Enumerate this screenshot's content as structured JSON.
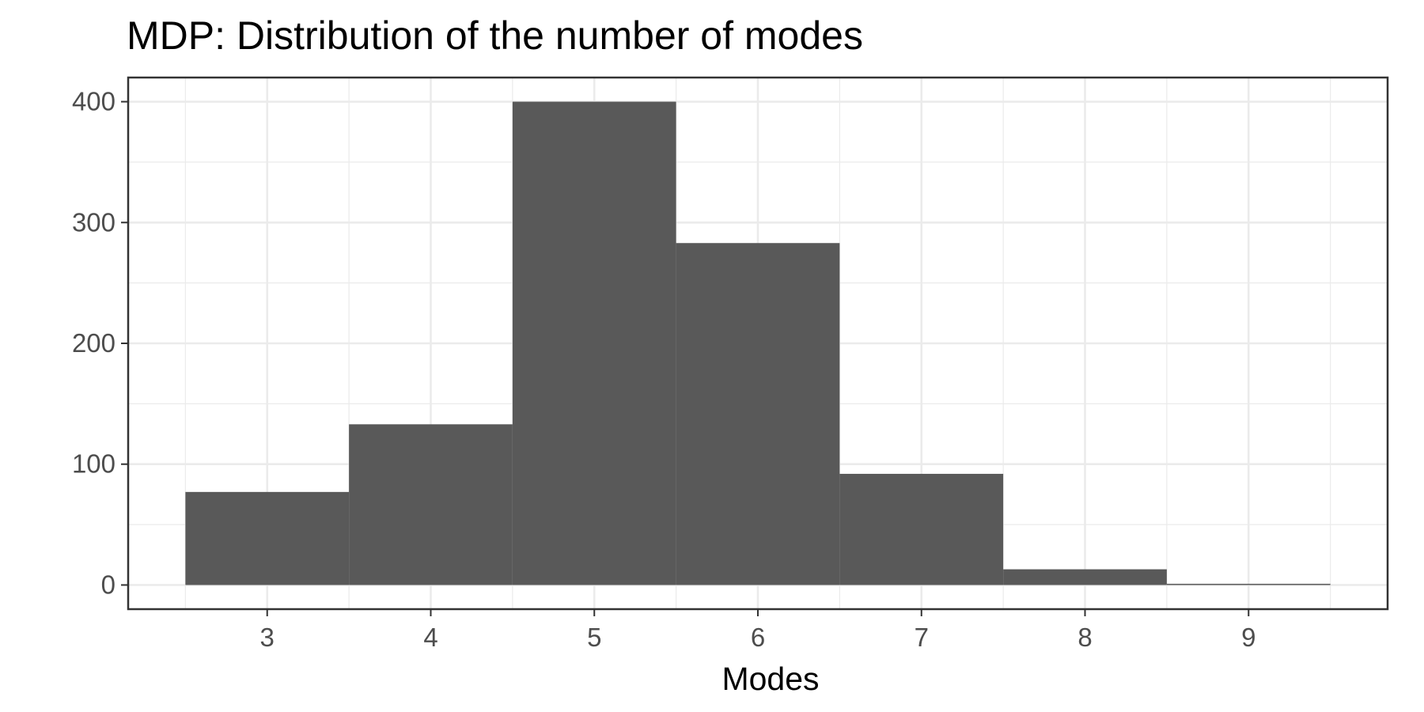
{
  "chart_data": {
    "type": "bar",
    "title": "MDP: Distribution of the number of modes",
    "xlabel": "Modes",
    "ylabel": "",
    "categories": [
      3,
      4,
      5,
      6,
      7,
      8,
      9
    ],
    "values": [
      77,
      133,
      400,
      283,
      92,
      13,
      1
    ],
    "bin_width": 1,
    "xlim": [
      2.15,
      9.85
    ],
    "ylim": [
      -20,
      420
    ],
    "x_ticks": [
      3,
      4,
      5,
      6,
      7,
      8,
      9
    ],
    "y_ticks": [
      0,
      100,
      200,
      300,
      400
    ],
    "y_minor_ticks": [
      50,
      150,
      250,
      350
    ],
    "grid": true,
    "legend": "none",
    "bar_color": "#595959",
    "grid_color": "#ebebeb",
    "panel_border_color": "#333333"
  }
}
